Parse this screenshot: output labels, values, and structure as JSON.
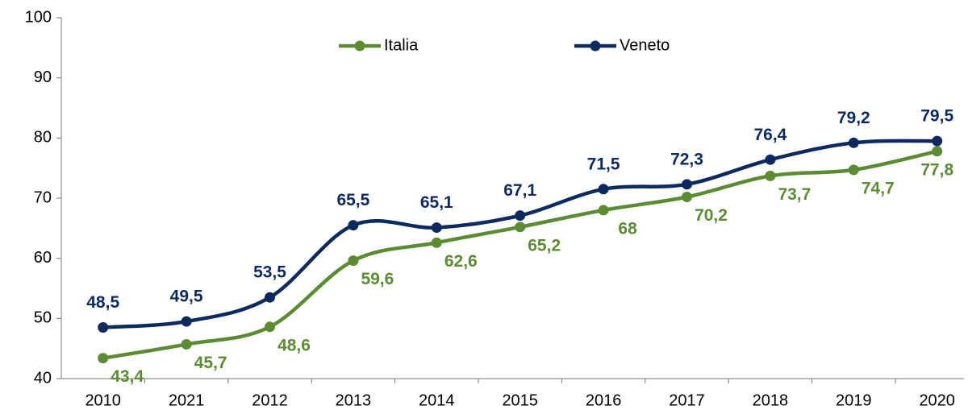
{
  "chart_data": {
    "type": "line",
    "categories": [
      "2010",
      "2021",
      "2012",
      "2013",
      "2014",
      "2015",
      "2016",
      "2017",
      "2018",
      "2019",
      "2020"
    ],
    "series": [
      {
        "name": "Italia",
        "color": "#5b8b32",
        "values": [
          43.4,
          45.7,
          48.6,
          59.6,
          62.6,
          65.2,
          68,
          70.2,
          73.7,
          74.7,
          77.8
        ],
        "value_labels": [
          "43,4",
          "45,7",
          "48,6",
          "59,6",
          "62,6",
          "65,2",
          "68",
          "70,2",
          "73,7",
          "74,7",
          "77,8"
        ]
      },
      {
        "name": "Veneto",
        "color": "#0c2a5f",
        "values": [
          48.5,
          49.5,
          53.5,
          65.5,
          65.1,
          67.1,
          71.5,
          72.3,
          76.4,
          79.2,
          79.5
        ],
        "value_labels": [
          "48,5",
          "49,5",
          "53,5",
          "65,5",
          "65,1",
          "67,1",
          "71,5",
          "72,3",
          "76,4",
          "79,2",
          "79,5"
        ]
      }
    ],
    "ylim": [
      40,
      100
    ],
    "yticks": [
      40,
      50,
      60,
      70,
      80,
      90,
      100
    ],
    "grid": false,
    "legend": "top"
  }
}
